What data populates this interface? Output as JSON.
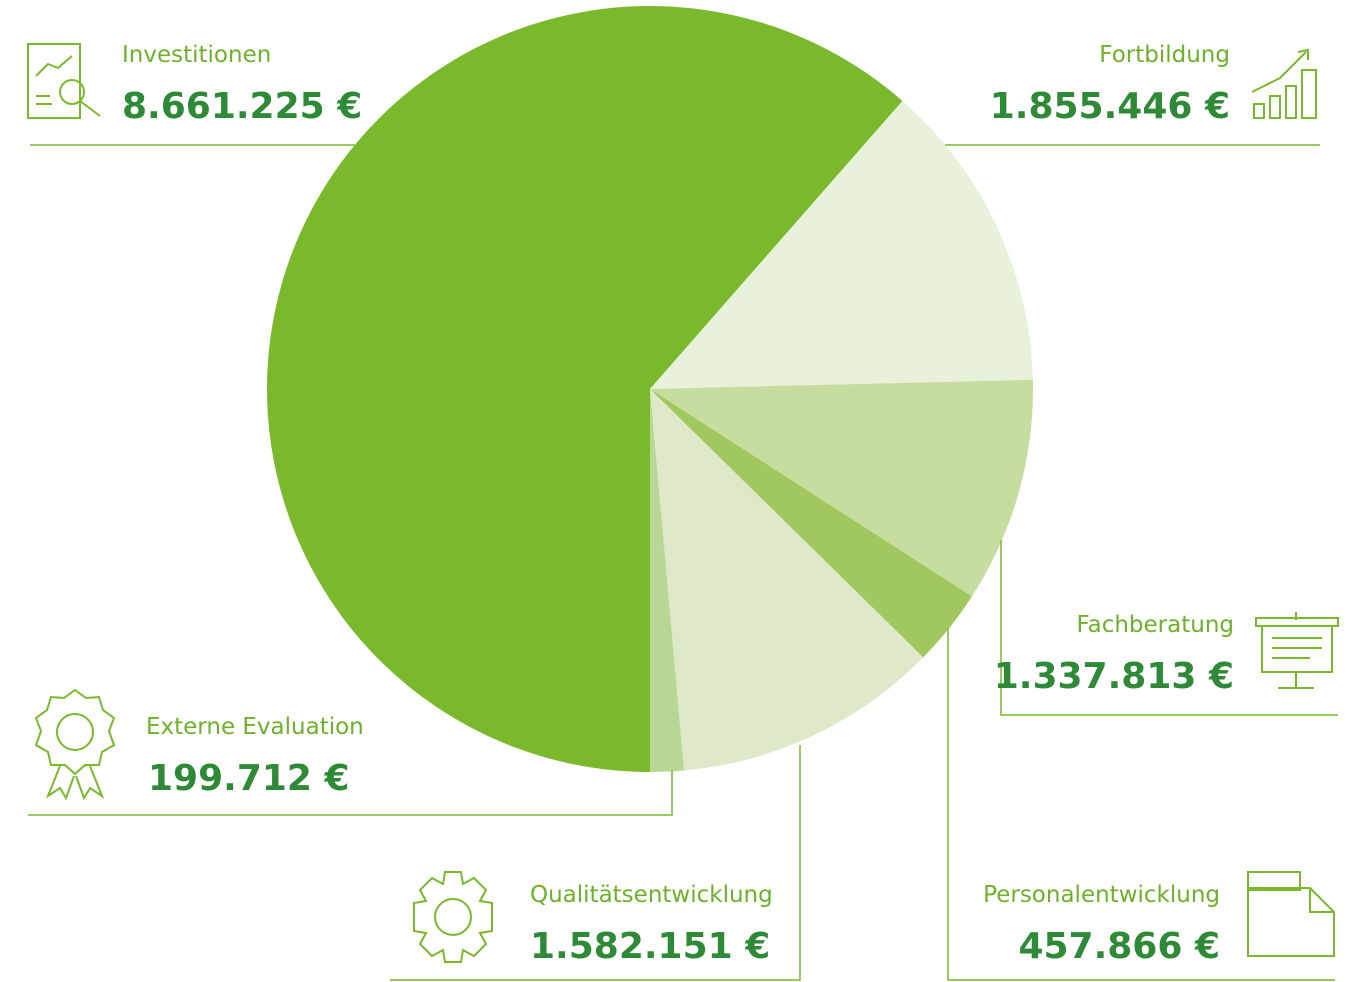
{
  "chart_data": {
    "type": "pie",
    "categories": [
      "Investitionen",
      "Fortbildung",
      "Fachberatung",
      "Personalentwicklung",
      "Qualitätsentwicklung",
      "Externe Evaluation"
    ],
    "values": [
      8661225,
      1855446,
      1337813,
      457866,
      1582151,
      199712
    ],
    "value_labels": [
      "8.661.225 €",
      "1.855.446 €",
      "1.337.813 €",
      "457.866 €",
      "1.582.151 €",
      "199.712 €"
    ],
    "colors": [
      "#7ab82c",
      "#e8f1d9",
      "#c6dd9f",
      "#a0c85e",
      "#dde9c9",
      "#b9d794"
    ]
  }
}
